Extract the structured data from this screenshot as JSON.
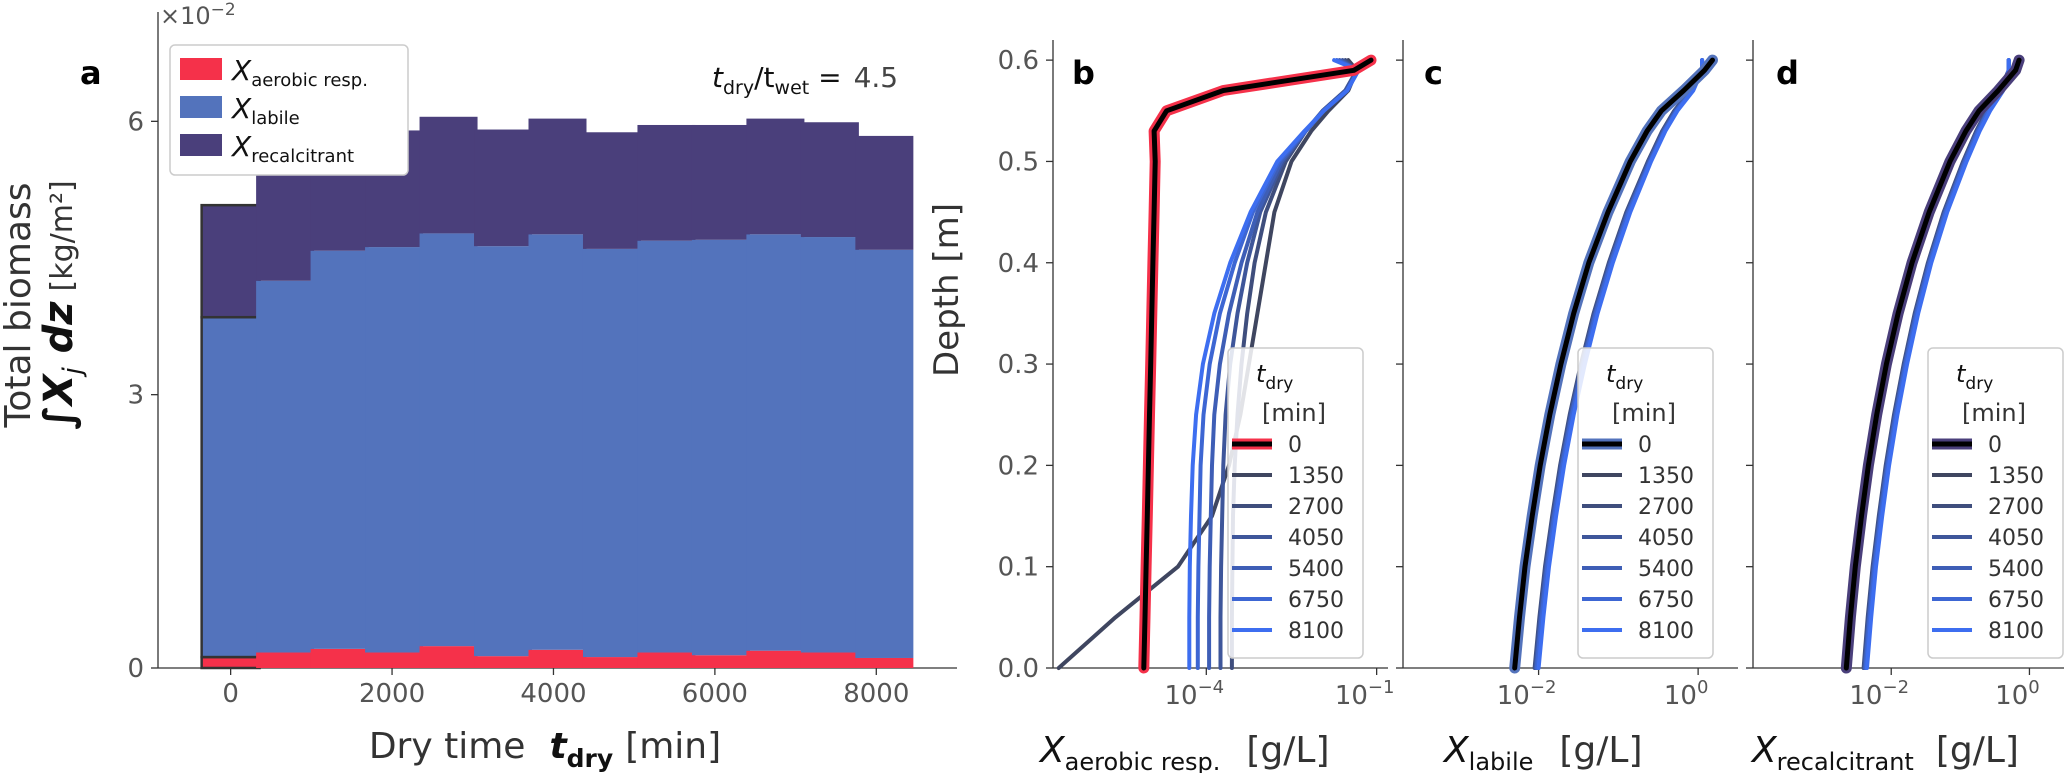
{
  "panels": {
    "a": "a",
    "b": "b",
    "c": "c",
    "d": "d"
  },
  "colors": {
    "aerobic": "#f5314a",
    "labile": "#5373bc",
    "recalcitrant": "#4a3f7b",
    "deep_blue": "#1f4fe0"
  },
  "chart_data": [
    {
      "type": "bar",
      "panel": "a",
      "stacked": true,
      "ylabel_line1": "Total biomass",
      "ylabel_line2": "∫X",
      "ylabel_sub": "j",
      "ylabel_dz": " dz",
      "ylabel_unit": "[kg/m²]",
      "xlabel": "Dry time",
      "xlabel_sym": "t",
      "xlabel_sub": "dry",
      "xlabel_unit": "[min]",
      "offset_text": "×10",
      "offset_exp": "−2",
      "ratio": {
        "t": "t",
        "sub1": "dry",
        "slash": "/t",
        "sub2": "wet",
        "eq": " =",
        "value": "4.5"
      },
      "x": [
        0,
        675,
        1350,
        2025,
        2700,
        3375,
        4050,
        4725,
        5400,
        6075,
        6750,
        7425,
        8100
      ],
      "xlim": [
        -900,
        9000
      ],
      "ylim": [
        0,
        7.2
      ],
      "xticks": [
        "0",
        "2000",
        "4000",
        "6000",
        "8000"
      ],
      "xtick_values": [
        0,
        2000,
        4000,
        6000,
        8000
      ],
      "yticks": [
        "0",
        "3",
        "6"
      ],
      "ytick_values": [
        0,
        3,
        6
      ],
      "legend": [
        {
          "sym": "X",
          "sub": "aerobic resp.",
          "color_key": "aerobic"
        },
        {
          "sym": "X",
          "sub": "labile",
          "color_key": "labile"
        },
        {
          "sym": "X",
          "sub": "recalcitrant",
          "color_key": "recalcitrant"
        }
      ],
      "series": [
        {
          "name": "X aerobic resp.",
          "color_key": "aerobic",
          "values": [
            0.12,
            0.17,
            0.21,
            0.17,
            0.24,
            0.13,
            0.2,
            0.12,
            0.17,
            0.14,
            0.19,
            0.17,
            0.11
          ]
        },
        {
          "name": "X labile",
          "color_key": "labile",
          "values": [
            3.73,
            4.08,
            4.37,
            4.45,
            4.53,
            4.5,
            4.56,
            4.48,
            4.52,
            4.56,
            4.57,
            4.56,
            4.48
          ]
        },
        {
          "name": "X recalcitrant",
          "color_key": "recalcitrant",
          "values": [
            1.23,
            1.18,
            1.24,
            1.28,
            1.28,
            1.28,
            1.27,
            1.28,
            1.27,
            1.26,
            1.27,
            1.26,
            1.25
          ]
        }
      ],
      "highlight_first_bar": true
    },
    {
      "type": "line",
      "panel": "b",
      "ylabel": "Depth [m]",
      "xlabel_sym": "X",
      "xlabel_sub": "aerobic resp.",
      "xlabel_unit": "[g/L]",
      "xscale": "log",
      "xlim_log10": [
        -6.7,
        -0.8
      ],
      "ylim": [
        0,
        0.61
      ],
      "xticks": [
        "10",
        "10"
      ],
      "xtick_exps": [
        "−4",
        "−1"
      ],
      "xtick_log10": [
        -4,
        -1
      ],
      "yticks": [
        "0.0",
        "0.1",
        "0.2",
        "0.3",
        "0.4",
        "0.5",
        "0.6"
      ],
      "ytick_values": [
        0,
        0.1,
        0.2,
        0.3,
        0.4,
        0.5,
        0.6
      ],
      "legend_title": "t",
      "legend_title_sub": "dry",
      "legend_unit": "[min]",
      "legend_outline_key": "aerobic",
      "depth": [
        0,
        0.05,
        0.1,
        0.15,
        0.2,
        0.25,
        0.3,
        0.35,
        0.4,
        0.45,
        0.5,
        0.53,
        0.55,
        0.57,
        0.59,
        0.6
      ],
      "series": [
        {
          "name": "0",
          "log10": [
            -5.1,
            -5.08,
            -5.06,
            -5.04,
            -5.02,
            -5.0,
            -4.98,
            -4.96,
            -4.94,
            -4.92,
            -4.9,
            -4.92,
            -4.7,
            -3.7,
            -1.4,
            -1.1
          ]
        },
        {
          "name": "1350",
          "log10": [
            -6.6,
            -5.6,
            -4.5,
            -3.9,
            -3.6,
            -3.4,
            -3.25,
            -3.1,
            -2.95,
            -2.8,
            -2.5,
            -2.15,
            -1.85,
            -1.5,
            -1.35,
            -1.5
          ]
        },
        {
          "name": "2700",
          "log10": [
            -3.55,
            -3.55,
            -3.54,
            -3.53,
            -3.5,
            -3.45,
            -3.38,
            -3.28,
            -3.15,
            -2.95,
            -2.6,
            -2.25,
            -1.95,
            -1.55,
            -1.35,
            -1.55
          ]
        },
        {
          "name": "4050",
          "log10": [
            -3.75,
            -3.75,
            -3.74,
            -3.72,
            -3.7,
            -3.66,
            -3.58,
            -3.45,
            -3.28,
            -3.05,
            -2.65,
            -2.25,
            -1.95,
            -1.55,
            -1.35,
            -1.6
          ]
        },
        {
          "name": "5400",
          "log10": [
            -3.95,
            -3.95,
            -3.94,
            -3.92,
            -3.9,
            -3.86,
            -3.76,
            -3.6,
            -3.38,
            -3.1,
            -2.68,
            -2.25,
            -1.93,
            -1.52,
            -1.33,
            -1.65
          ]
        },
        {
          "name": "6750",
          "log10": [
            -4.15,
            -4.15,
            -4.14,
            -4.12,
            -4.1,
            -4.05,
            -3.94,
            -3.76,
            -3.5,
            -3.18,
            -2.72,
            -2.25,
            -1.93,
            -1.52,
            -1.32,
            -1.7
          ]
        },
        {
          "name": "8100",
          "log10": [
            -4.3,
            -4.3,
            -4.29,
            -4.27,
            -4.24,
            -4.18,
            -4.06,
            -3.86,
            -3.58,
            -3.22,
            -2.75,
            -2.27,
            -1.93,
            -1.52,
            -1.32,
            -1.75
          ]
        }
      ]
    },
    {
      "type": "line",
      "panel": "c",
      "xlabel_sym": "X",
      "xlabel_sub": "labile",
      "xlabel_unit": "[g/L]",
      "xscale": "log",
      "xlim_log10": [
        -3.7,
        0.5
      ],
      "ylim": [
        0,
        0.61
      ],
      "xticks": [
        "10",
        "10"
      ],
      "xtick_exps": [
        "−2",
        "0"
      ],
      "xtick_log10": [
        -2,
        0
      ],
      "legend_title": "t",
      "legend_title_sub": "dry",
      "legend_unit": "[min]",
      "legend_outline_key": "labile",
      "depth": [
        0,
        0.05,
        0.1,
        0.15,
        0.2,
        0.25,
        0.3,
        0.35,
        0.4,
        0.45,
        0.5,
        0.53,
        0.55,
        0.57,
        0.59,
        0.6
      ],
      "series": [
        {
          "name": "0",
          "log10": [
            -2.3,
            -2.24,
            -2.17,
            -2.08,
            -1.98,
            -1.86,
            -1.72,
            -1.56,
            -1.37,
            -1.13,
            -0.85,
            -0.64,
            -0.46,
            -0.18,
            0.08,
            0.18
          ]
        },
        {
          "name": "1350",
          "log10": [
            -2.3,
            -2.24,
            -2.17,
            -2.08,
            -1.98,
            -1.86,
            -1.72,
            -1.56,
            -1.37,
            -1.13,
            -0.85,
            -0.64,
            -0.46,
            -0.18,
            0.08,
            0.18
          ]
        },
        {
          "name": "2700",
          "log10": [
            -2.05,
            -1.99,
            -1.92,
            -1.83,
            -1.73,
            -1.61,
            -1.47,
            -1.31,
            -1.12,
            -0.9,
            -0.63,
            -0.45,
            -0.3,
            -0.1,
            0.05,
            0.05
          ]
        },
        {
          "name": "4050",
          "log10": [
            -2.04,
            -1.98,
            -1.91,
            -1.82,
            -1.72,
            -1.6,
            -1.46,
            -1.3,
            -1.11,
            -0.89,
            -0.62,
            -0.44,
            -0.29,
            -0.09,
            0.05,
            0.05
          ]
        },
        {
          "name": "5400",
          "log10": [
            -2.03,
            -1.97,
            -1.9,
            -1.81,
            -1.71,
            -1.59,
            -1.45,
            -1.29,
            -1.1,
            -0.88,
            -0.61,
            -0.43,
            -0.28,
            -0.08,
            0.05,
            0.05
          ]
        },
        {
          "name": "6750",
          "log10": [
            -2.02,
            -1.96,
            -1.89,
            -1.8,
            -1.7,
            -1.58,
            -1.44,
            -1.28,
            -1.09,
            -0.87,
            -0.6,
            -0.42,
            -0.27,
            -0.07,
            0.05,
            0.05
          ]
        },
        {
          "name": "8100",
          "log10": [
            -2.0,
            -1.94,
            -1.87,
            -1.78,
            -1.68,
            -1.56,
            -1.42,
            -1.26,
            -1.07,
            -0.85,
            -0.59,
            -0.41,
            -0.26,
            -0.06,
            0.05,
            0.05
          ]
        }
      ]
    },
    {
      "type": "line",
      "panel": "d",
      "xlabel_sym": "X",
      "xlabel_sub": "recalcitrant",
      "xlabel_unit": "[g/L]",
      "xscale": "log",
      "xlim_log10": [
        -4.0,
        0.5
      ],
      "ylim": [
        0,
        0.61
      ],
      "xticks": [
        "10",
        "10"
      ],
      "xtick_exps": [
        "−2",
        "0"
      ],
      "xtick_log10": [
        -2,
        0
      ],
      "legend_title": "t",
      "legend_title_sub": "dry",
      "legend_unit": "[min]",
      "legend_outline_key": "recalcitrant",
      "depth": [
        0,
        0.05,
        0.1,
        0.15,
        0.2,
        0.25,
        0.3,
        0.35,
        0.4,
        0.45,
        0.5,
        0.53,
        0.55,
        0.57,
        0.59,
        0.6
      ],
      "series": [
        {
          "name": "0",
          "log10": [
            -2.65,
            -2.59,
            -2.52,
            -2.43,
            -2.33,
            -2.21,
            -2.07,
            -1.9,
            -1.7,
            -1.45,
            -1.15,
            -0.92,
            -0.73,
            -0.45,
            -0.2,
            -0.15
          ]
        },
        {
          "name": "1350",
          "log10": [
            -2.65,
            -2.59,
            -2.52,
            -2.43,
            -2.33,
            -2.21,
            -2.07,
            -1.9,
            -1.7,
            -1.45,
            -1.15,
            -0.92,
            -0.73,
            -0.45,
            -0.2,
            -0.15
          ]
        },
        {
          "name": "2700",
          "log10": [
            -2.4,
            -2.34,
            -2.27,
            -2.18,
            -2.08,
            -1.96,
            -1.82,
            -1.66,
            -1.47,
            -1.24,
            -0.96,
            -0.77,
            -0.62,
            -0.43,
            -0.3,
            -0.3
          ]
        },
        {
          "name": "4050",
          "log10": [
            -2.39,
            -2.33,
            -2.26,
            -2.17,
            -2.07,
            -1.95,
            -1.81,
            -1.65,
            -1.46,
            -1.23,
            -0.95,
            -0.76,
            -0.61,
            -0.42,
            -0.3,
            -0.3
          ]
        },
        {
          "name": "5400",
          "log10": [
            -2.38,
            -2.32,
            -2.25,
            -2.16,
            -2.06,
            -1.94,
            -1.8,
            -1.64,
            -1.45,
            -1.22,
            -0.94,
            -0.75,
            -0.6,
            -0.41,
            -0.3,
            -0.3
          ]
        },
        {
          "name": "6750",
          "log10": [
            -2.37,
            -2.31,
            -2.24,
            -2.15,
            -2.05,
            -1.93,
            -1.79,
            -1.63,
            -1.44,
            -1.21,
            -0.93,
            -0.74,
            -0.59,
            -0.4,
            -0.3,
            -0.3
          ]
        },
        {
          "name": "8100",
          "log10": [
            -2.35,
            -2.29,
            -2.22,
            -2.13,
            -2.03,
            -1.91,
            -1.77,
            -1.61,
            -1.42,
            -1.19,
            -0.91,
            -0.72,
            -0.57,
            -0.38,
            -0.3,
            -0.3
          ]
        }
      ]
    }
  ]
}
